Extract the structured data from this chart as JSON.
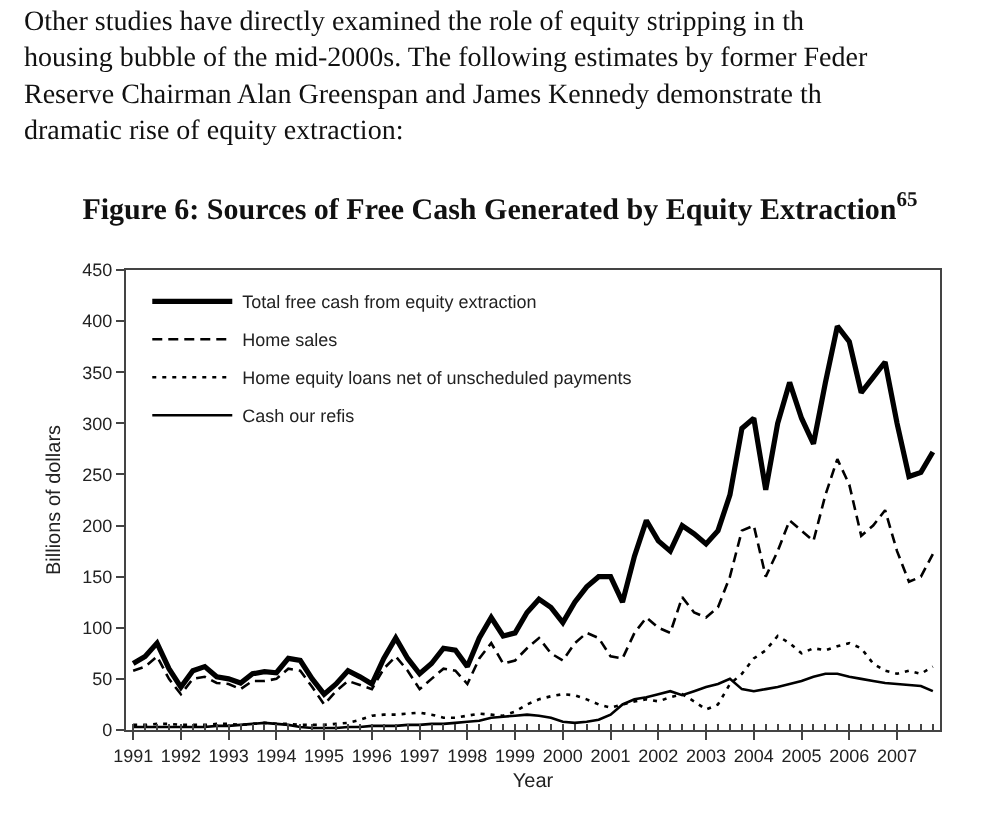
{
  "chart_data": {
    "type": "line",
    "title": "Figure 6: Sources of Free Cash Generated by Equity Extraction$^{65}$",
    "annotations": [
      "Other studies have directly examined the role of equity stripping in th\nhousing bubble of the mid-2000s. The following estimates by former Feder\nReserve Chairman Alan Greenspan and James Kennedy demonstrate th\ndramatic rise of equity extraction:"
    ],
    "xlabel": "Year",
    "ylabel": "Billions of dollars",
    "x": [
      1991,
      1991.25,
      1991.5,
      1991.75,
      1992,
      1992.25,
      1992.5,
      1992.75,
      1993,
      1993.25,
      1993.5,
      1993.75,
      1994,
      1994.25,
      1994.5,
      1994.75,
      1995,
      1995.25,
      1995.5,
      1995.75,
      1996,
      1996.25,
      1996.5,
      1996.75,
      1997,
      1997.25,
      1997.5,
      1997.75,
      1998,
      1998.25,
      1998.5,
      1998.75,
      1999,
      1999.25,
      1999.5,
      1999.75,
      2000,
      2000.25,
      2000.5,
      2000.75,
      2001,
      2001.25,
      2001.5,
      2001.75,
      2002,
      2002.25,
      2002.5,
      2002.75,
      2003,
      2003.25,
      2003.5,
      2003.75,
      2004,
      2004.25,
      2004.5,
      2004.75,
      2005,
      2005.25,
      2005.5,
      2005.75,
      2006,
      2006.25,
      2006.5,
      2006.75,
      2007,
      2007.25,
      2007.5,
      2007.75
    ],
    "series": [
      {
        "name": "Total free cash from equity extraction",
        "color": "#000000",
        "line_style": "solid",
        "values": [
          65,
          72,
          85,
          60,
          42,
          58,
          62,
          52,
          50,
          46,
          55,
          57,
          56,
          70,
          68,
          50,
          35,
          45,
          58,
          52,
          45,
          70,
          90,
          70,
          55,
          65,
          80,
          78,
          62,
          90,
          110,
          92,
          95,
          115,
          128,
          120,
          105,
          125,
          140,
          150,
          150,
          125,
          170,
          205,
          185,
          175,
          200,
          192,
          182,
          195,
          230,
          295,
          305,
          235,
          300,
          340,
          305,
          280,
          340,
          395,
          380,
          330,
          345,
          360,
          300,
          248,
          252,
          272
        ]
      },
      {
        "name": "Home sales",
        "color": "#000000",
        "line_style": "dashed",
        "values": [
          58,
          62,
          72,
          50,
          35,
          50,
          52,
          46,
          45,
          40,
          48,
          48,
          50,
          60,
          58,
          42,
          25,
          38,
          48,
          44,
          40,
          60,
          72,
          58,
          40,
          50,
          60,
          58,
          45,
          70,
          85,
          65,
          68,
          80,
          90,
          75,
          68,
          85,
          95,
          90,
          72,
          70,
          95,
          110,
          100,
          95,
          130,
          115,
          110,
          120,
          150,
          195,
          200,
          150,
          175,
          205,
          195,
          185,
          230,
          265,
          240,
          190,
          200,
          215,
          175,
          145,
          150,
          172
        ]
      },
      {
        "name": "Home equity loans net of unscheduled payments",
        "color": "#000000",
        "line_style": "dotted",
        "values": [
          5,
          5,
          6,
          6,
          5,
          5,
          5,
          6,
          6,
          5,
          6,
          7,
          6,
          6,
          5,
          5,
          5,
          6,
          7,
          10,
          14,
          15,
          15,
          16,
          17,
          15,
          12,
          12,
          14,
          16,
          15,
          14,
          18,
          25,
          30,
          33,
          35,
          34,
          30,
          25,
          22,
          25,
          28,
          30,
          28,
          32,
          35,
          28,
          20,
          25,
          45,
          55,
          70,
          78,
          92,
          85,
          75,
          80,
          78,
          82,
          85,
          80,
          65,
          58,
          55,
          58,
          55,
          62
        ]
      },
      {
        "name": "Cash our refis",
        "color": "#000000",
        "line_style": "solid",
        "values": [
          3,
          3,
          3,
          3,
          3,
          3,
          3,
          4,
          4,
          5,
          6,
          7,
          6,
          5,
          3,
          2,
          2,
          2,
          3,
          3,
          4,
          4,
          4,
          5,
          5,
          6,
          6,
          7,
          8,
          9,
          12,
          13,
          14,
          15,
          14,
          12,
          8,
          7,
          8,
          10,
          15,
          25,
          30,
          32,
          35,
          38,
          34,
          38,
          42,
          45,
          50,
          40,
          38,
          40,
          42,
          45,
          48,
          52,
          55,
          55,
          52,
          50,
          48,
          46,
          45,
          44,
          43,
          38
        ]
      }
    ],
    "xlim": [
      1990.85,
      2007.9
    ],
    "xticks": [
      1991,
      1992,
      1993,
      1994,
      1995,
      1996,
      1997,
      1998,
      1999,
      2000,
      2001,
      2002,
      2003,
      2004,
      2005,
      2006,
      2007
    ],
    "ylim": [
      0,
      450
    ],
    "yticks": [
      0,
      50,
      100,
      150,
      200,
      250,
      300,
      350,
      400,
      450
    ],
    "legend": "top left",
    "marker": "none"
  }
}
